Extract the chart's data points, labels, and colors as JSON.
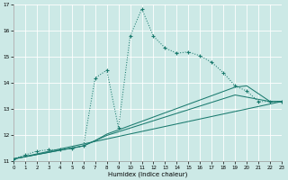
{
  "xlabel": "Humidex (Indice chaleur)",
  "background_color": "#cce9e6",
  "grid_color": "#b8d8d5",
  "line_color": "#1a7a6e",
  "xlim": [
    0,
    23
  ],
  "ylim": [
    11,
    17
  ],
  "yticks": [
    11,
    12,
    13,
    14,
    15,
    16,
    17
  ],
  "xticks": [
    0,
    1,
    2,
    3,
    4,
    5,
    6,
    7,
    8,
    9,
    10,
    11,
    12,
    13,
    14,
    15,
    16,
    17,
    18,
    19,
    20,
    21,
    22,
    23
  ],
  "series1_x": [
    0,
    1,
    2,
    3,
    4,
    5,
    6,
    7,
    8,
    9,
    10,
    11,
    12,
    13,
    14,
    15,
    16,
    17,
    18,
    19,
    20,
    21,
    22,
    23
  ],
  "series1_y": [
    11.1,
    11.25,
    11.4,
    11.45,
    11.45,
    11.5,
    11.6,
    14.2,
    14.5,
    12.3,
    15.8,
    16.85,
    15.8,
    15.35,
    15.15,
    15.2,
    15.05,
    14.8,
    14.4,
    13.9,
    13.7,
    13.3,
    13.3,
    13.3
  ],
  "series2_x": [
    0,
    6,
    7,
    8,
    19,
    20,
    22,
    23
  ],
  "series2_y": [
    11.1,
    11.6,
    11.8,
    12.05,
    13.85,
    13.9,
    13.3,
    13.3
  ],
  "series3_x": [
    0,
    6,
    8,
    19,
    22,
    23
  ],
  "series3_y": [
    11.1,
    11.6,
    12.0,
    13.55,
    13.3,
    13.3
  ],
  "series4_x": [
    0,
    23
  ],
  "series4_y": [
    11.1,
    13.3
  ]
}
